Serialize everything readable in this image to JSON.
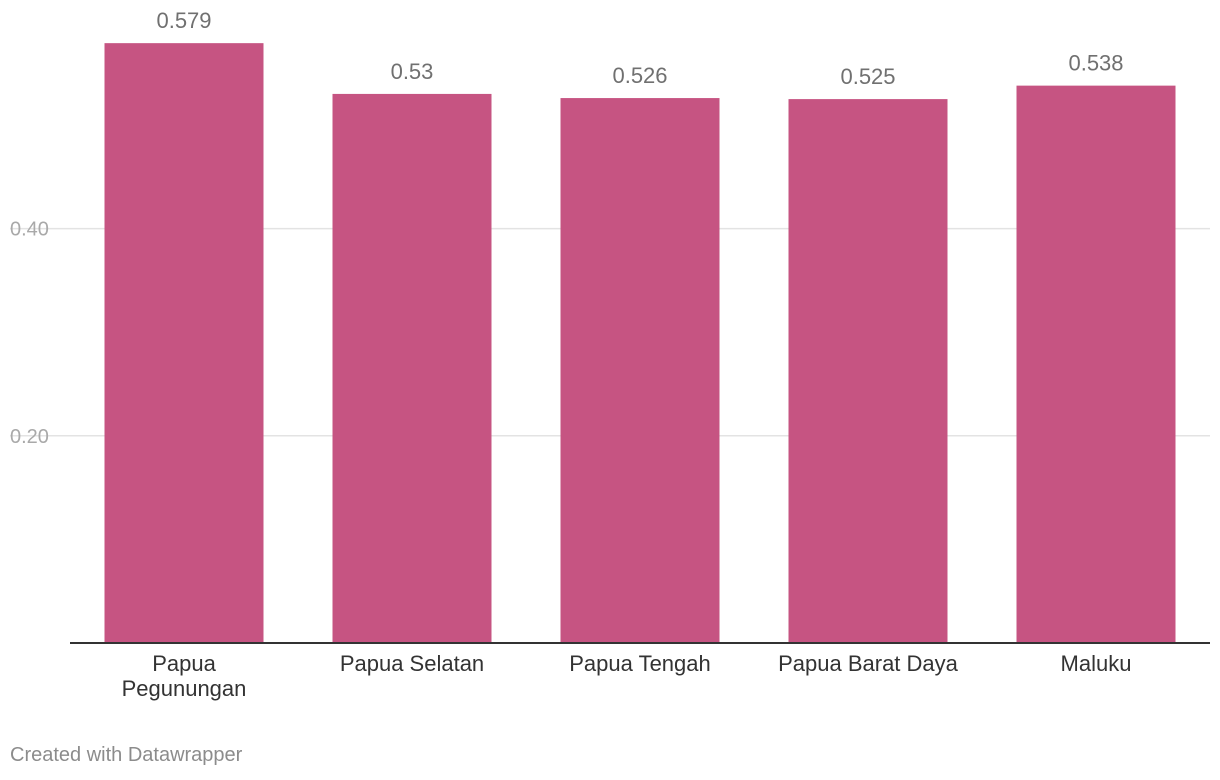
{
  "chart_data": {
    "type": "bar",
    "categories": [
      [
        "Papua",
        "Pegunungan"
      ],
      [
        "Papua Selatan"
      ],
      [
        "Papua Tengah"
      ],
      [
        "Papua Barat Daya"
      ],
      [
        "Maluku"
      ]
    ],
    "values": [
      0.579,
      0.53,
      0.526,
      0.525,
      0.538
    ],
    "value_labels": [
      "0.579",
      "0.53",
      "0.526",
      "0.525",
      "0.538"
    ],
    "yticks": [
      {
        "value": 0.2,
        "label": "0.20"
      },
      {
        "value": 0.4,
        "label": "0.40"
      }
    ],
    "ylim": [
      0,
      0.6
    ],
    "grid": true,
    "bar_color": "#c65482"
  },
  "footer": {
    "credit": "Created with Datawrapper"
  }
}
